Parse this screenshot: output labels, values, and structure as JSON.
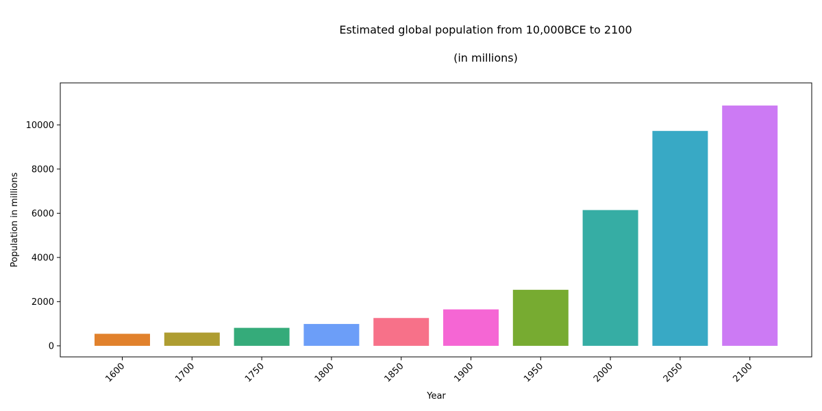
{
  "chart_data": {
    "type": "bar",
    "title": "Estimated global population from 10,000BCE to 2100",
    "subtitle": "(in millions)",
    "xlabel": "Year",
    "ylabel": "Population in millions",
    "categories": [
      "1600",
      "1700",
      "1750",
      "1800",
      "1850",
      "1900",
      "1950",
      "2000",
      "2050",
      "2100"
    ],
    "values": [
      545,
      600,
      814,
      990,
      1260,
      1650,
      2536,
      6145,
      9725,
      10875
    ],
    "colors": [
      "#e1812c",
      "#ae9d31",
      "#35ab7a",
      "#6c9ef8",
      "#f77189",
      "#f566d4",
      "#77ab31",
      "#36ada4",
      "#38a9c5",
      "#cc7af4"
    ],
    "yticks": [
      0,
      2000,
      4000,
      6000,
      8000,
      10000
    ],
    "ylim": [
      -500,
      11900
    ],
    "grid": false,
    "legend": "none"
  }
}
